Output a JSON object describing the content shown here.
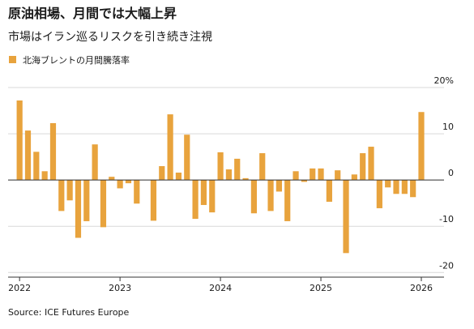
{
  "chart_data": {
    "type": "bar",
    "title": "原油相場、月間では大幅上昇",
    "subtitle": "市場はイラン巡るリスクを引き続き注視",
    "source": "Source: ICE Futures Europe",
    "series": [
      {
        "name": "北海ブレントの月間騰落率",
        "color": "#e8a33d",
        "values": [
          17.2,
          10.7,
          6.1,
          1.9,
          12.3,
          -6.7,
          -4.4,
          -12.5,
          -8.9,
          7.7,
          -10.2,
          0.7,
          -1.8,
          -0.7,
          -5.1,
          0,
          -8.8,
          3.0,
          14.2,
          1.6,
          9.8,
          -8.4,
          -5.4,
          -7.0,
          6.0,
          2.3,
          4.6,
          0.4,
          -7.2,
          5.8,
          -6.7,
          -2.5,
          -8.9,
          1.9,
          -0.4,
          2.5,
          2.5,
          -4.7,
          2.1,
          -15.8,
          1.2,
          5.8,
          7.2,
          -6.1,
          -1.6,
          -3.0,
          -3.0,
          -3.7,
          14.7
        ]
      }
    ],
    "categories": [
      "2022",
      null,
      null,
      null,
      null,
      null,
      null,
      null,
      null,
      null,
      null,
      null,
      "2023",
      null,
      null,
      null,
      null,
      null,
      null,
      null,
      null,
      null,
      null,
      null,
      "2024",
      null,
      null,
      null,
      null,
      null,
      null,
      null,
      null,
      null,
      null,
      null,
      "2025",
      null,
      null,
      null,
      null,
      null,
      null,
      null,
      null,
      null,
      null,
      null,
      "2026"
    ],
    "ylim": [
      -21,
      20
    ],
    "yticks": [
      {
        "value": 20,
        "label": "20%"
      },
      10,
      0,
      -10,
      -20
    ],
    "grid": true
  }
}
